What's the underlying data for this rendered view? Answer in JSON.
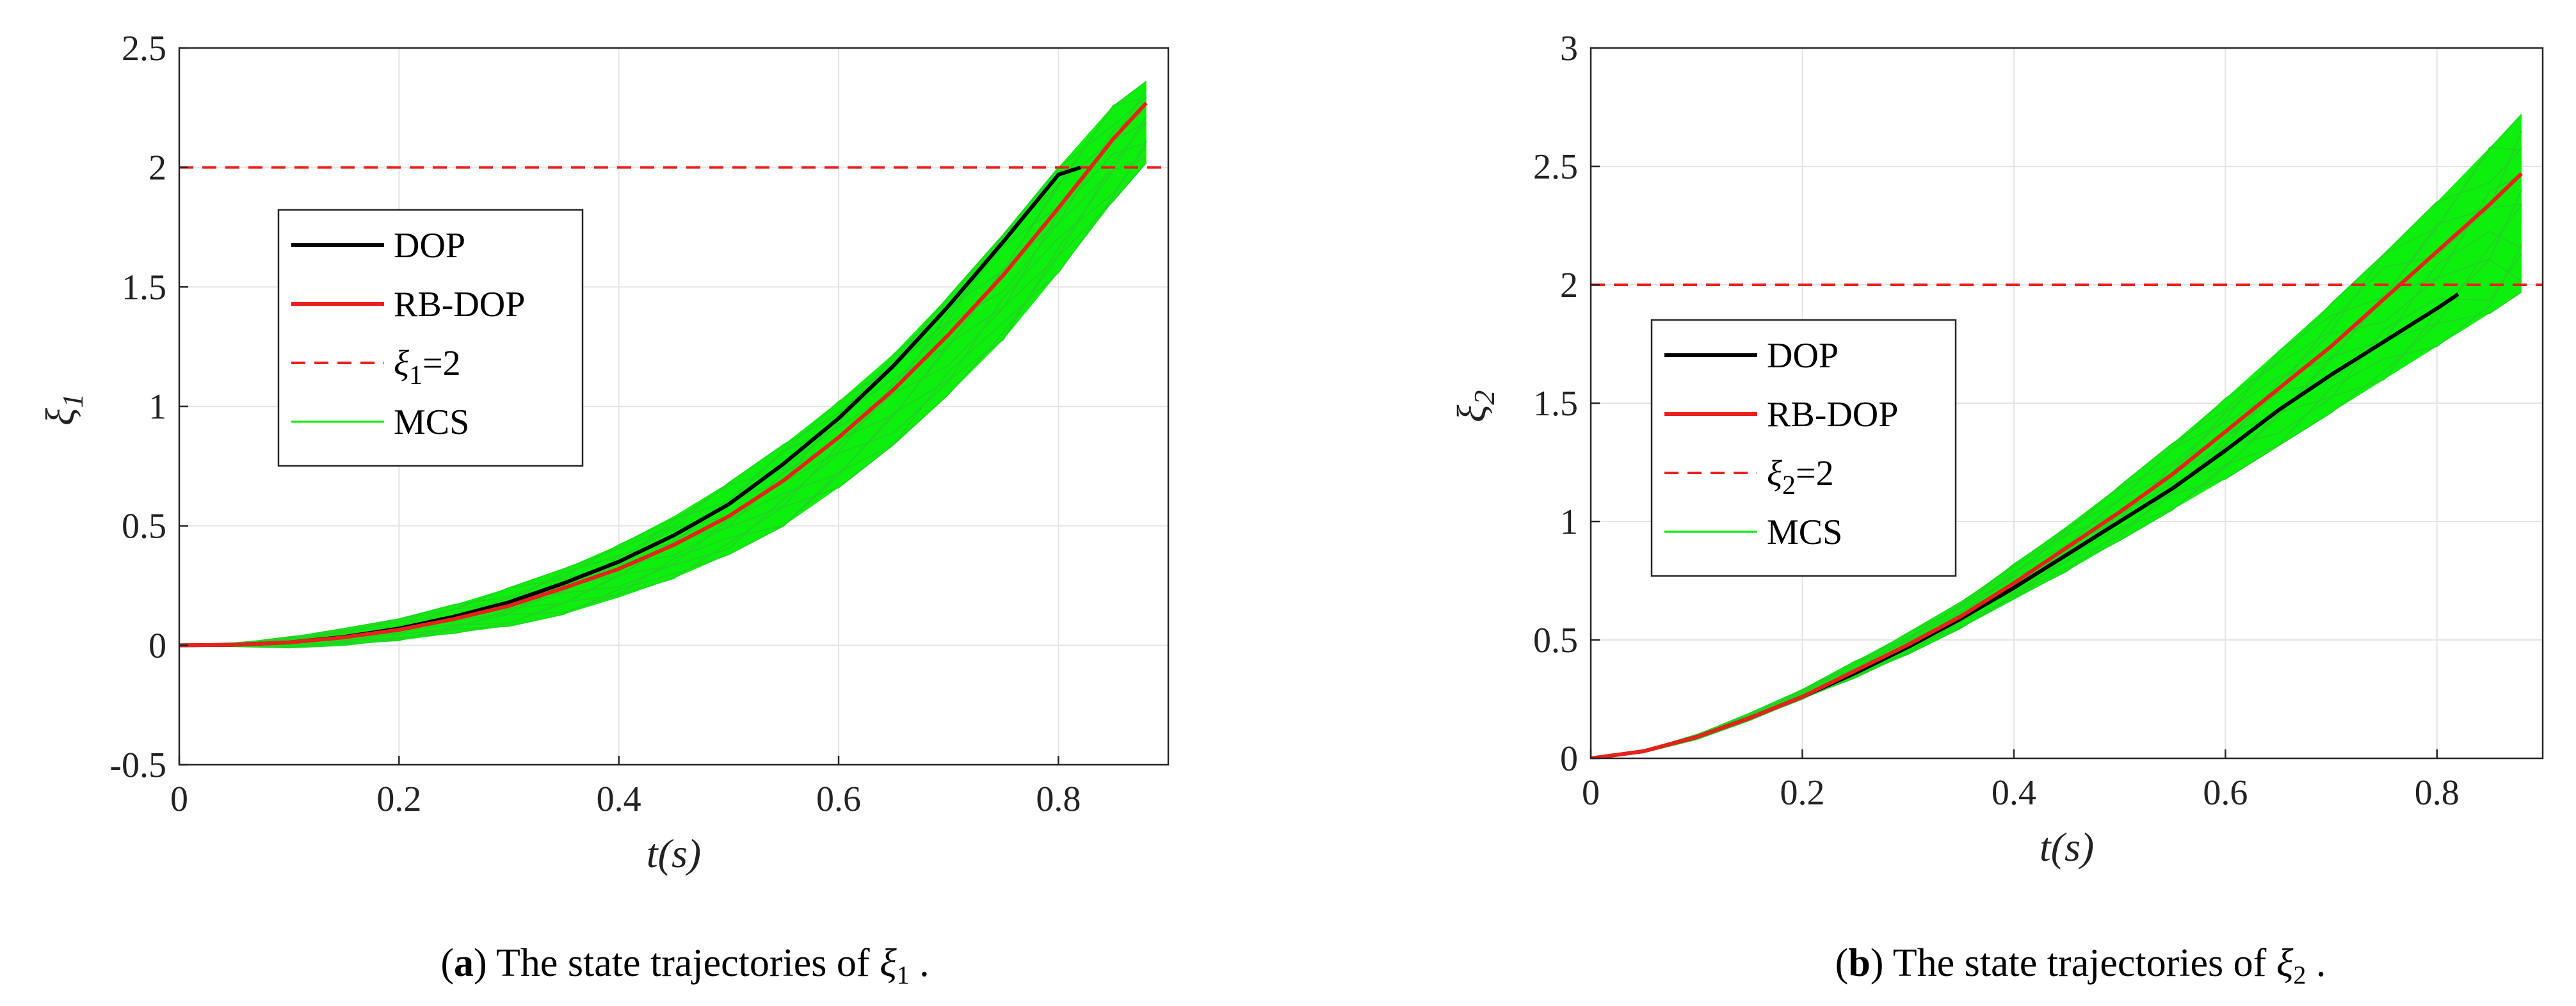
{
  "chart_data": [
    {
      "type": "line",
      "panel_letter": "a",
      "caption_text": "The state trajectories of",
      "caption_symbol": "ξ",
      "caption_subscript": "1",
      "caption_end": ".",
      "xlabel": "t(s)",
      "ylabel_symbol": "ξ",
      "ylabel_subscript": "1",
      "xlim": [
        0,
        0.9
      ],
      "ylim": [
        -0.5,
        2.5
      ],
      "xticks": [
        0,
        0.2,
        0.4,
        0.6,
        0.8
      ],
      "xtick_labels": [
        "0",
        "0.2",
        "0.4",
        "0.6",
        "0.8"
      ],
      "yticks": [
        -0.5,
        0,
        0.5,
        1,
        1.5,
        2,
        2.5
      ],
      "ytick_labels": [
        "-0.5",
        "0",
        "0.5",
        "1",
        "1.5",
        "2",
        "2.5"
      ],
      "grid": true,
      "legend_position": "center-left",
      "threshold": 2,
      "series": [
        {
          "name": "DOP",
          "color": "#000000",
          "style": "solid",
          "x": [
            0,
            0.05,
            0.1,
            0.15,
            0.2,
            0.25,
            0.3,
            0.35,
            0.4,
            0.45,
            0.5,
            0.55,
            0.6,
            0.65,
            0.7,
            0.75,
            0.8,
            0.82
          ],
          "y": [
            0,
            0.002,
            0.012,
            0.035,
            0.07,
            0.12,
            0.18,
            0.26,
            0.35,
            0.46,
            0.59,
            0.76,
            0.95,
            1.17,
            1.42,
            1.69,
            1.97,
            2.0
          ]
        },
        {
          "name": "RB-DOP",
          "color": "#e8211d",
          "style": "solid",
          "x": [
            0,
            0.05,
            0.1,
            0.15,
            0.2,
            0.25,
            0.3,
            0.35,
            0.4,
            0.45,
            0.5,
            0.55,
            0.6,
            0.65,
            0.7,
            0.75,
            0.8,
            0.85,
            0.88
          ],
          "y": [
            0,
            0.002,
            0.012,
            0.033,
            0.065,
            0.11,
            0.165,
            0.24,
            0.32,
            0.42,
            0.54,
            0.69,
            0.87,
            1.07,
            1.3,
            1.55,
            1.83,
            2.12,
            2.27
          ]
        },
        {
          "name": "ξ1=2",
          "legend_symbol": "ξ",
          "legend_subscript": "1",
          "legend_rest": "=2",
          "color": "#e8211d",
          "style": "dashed",
          "x": [
            0,
            0.9
          ],
          "y": [
            2,
            2
          ]
        },
        {
          "name": "MCS",
          "color": "#00ee00",
          "style": "band",
          "x": [
            0,
            0.05,
            0.1,
            0.15,
            0.2,
            0.25,
            0.3,
            0.35,
            0.4,
            0.45,
            0.5,
            0.55,
            0.6,
            0.65,
            0.7,
            0.75,
            0.8,
            0.85,
            0.88
          ],
          "y_low": [
            0,
            -0.005,
            -0.01,
            0.0,
            0.02,
            0.05,
            0.08,
            0.13,
            0.2,
            0.28,
            0.38,
            0.5,
            0.66,
            0.84,
            1.05,
            1.28,
            1.56,
            1.86,
            2.02
          ],
          "y_high": [
            0,
            0.01,
            0.035,
            0.07,
            0.11,
            0.17,
            0.24,
            0.32,
            0.42,
            0.54,
            0.68,
            0.84,
            1.02,
            1.22,
            1.46,
            1.72,
            2.0,
            2.26,
            2.36
          ]
        }
      ]
    },
    {
      "type": "line",
      "panel_letter": "b",
      "caption_text": "The state trajectories of",
      "caption_symbol": "ξ",
      "caption_subscript": "2",
      "caption_end": ".",
      "xlabel": "t(s)",
      "ylabel_symbol": "ξ",
      "ylabel_subscript": "2",
      "xlim": [
        0,
        0.9
      ],
      "ylim": [
        0,
        3
      ],
      "xticks": [
        0,
        0.2,
        0.4,
        0.6,
        0.8
      ],
      "xtick_labels": [
        "0",
        "0.2",
        "0.4",
        "0.6",
        "0.8"
      ],
      "yticks": [
        0,
        0.5,
        1,
        1.5,
        2,
        2.5,
        3
      ],
      "ytick_labels": [
        "0",
        "0.5",
        "1",
        "1.5",
        "2",
        "2.5",
        "3"
      ],
      "grid": true,
      "legend_position": "center-left",
      "threshold": 2,
      "series": [
        {
          "name": "DOP",
          "color": "#000000",
          "style": "solid",
          "x": [
            0,
            0.05,
            0.1,
            0.15,
            0.2,
            0.25,
            0.3,
            0.35,
            0.4,
            0.45,
            0.5,
            0.55,
            0.6,
            0.65,
            0.7,
            0.75,
            0.8,
            0.82
          ],
          "y": [
            0,
            0.03,
            0.09,
            0.17,
            0.26,
            0.36,
            0.47,
            0.59,
            0.72,
            0.86,
            1.0,
            1.14,
            1.3,
            1.47,
            1.62,
            1.76,
            1.9,
            1.96
          ]
        },
        {
          "name": "RB-DOP",
          "color": "#e8211d",
          "style": "solid",
          "x": [
            0,
            0.05,
            0.1,
            0.15,
            0.2,
            0.25,
            0.3,
            0.35,
            0.4,
            0.45,
            0.5,
            0.55,
            0.6,
            0.65,
            0.7,
            0.75,
            0.8,
            0.85,
            0.88
          ],
          "y": [
            0,
            0.03,
            0.09,
            0.17,
            0.26,
            0.37,
            0.48,
            0.6,
            0.74,
            0.89,
            1.04,
            1.2,
            1.38,
            1.56,
            1.74,
            1.94,
            2.14,
            2.34,
            2.47
          ]
        },
        {
          "name": "ξ2=2",
          "legend_symbol": "ξ",
          "legend_subscript": "2",
          "legend_rest": "=2",
          "color": "#e8211d",
          "style": "dashed",
          "x": [
            0,
            0.9
          ],
          "y": [
            2,
            2
          ]
        },
        {
          "name": "MCS",
          "color": "#00ee00",
          "style": "band",
          "x": [
            0,
            0.05,
            0.1,
            0.15,
            0.2,
            0.25,
            0.3,
            0.35,
            0.4,
            0.45,
            0.5,
            0.55,
            0.6,
            0.65,
            0.7,
            0.75,
            0.8,
            0.85,
            0.88
          ],
          "y_low": [
            0,
            0.025,
            0.08,
            0.16,
            0.25,
            0.34,
            0.44,
            0.55,
            0.67,
            0.79,
            0.92,
            1.05,
            1.18,
            1.32,
            1.46,
            1.6,
            1.74,
            1.88,
            1.97
          ],
          "y_high": [
            0,
            0.035,
            0.1,
            0.19,
            0.29,
            0.41,
            0.53,
            0.66,
            0.82,
            0.98,
            1.15,
            1.33,
            1.52,
            1.72,
            1.92,
            2.13,
            2.35,
            2.58,
            2.72
          ]
        }
      ]
    }
  ]
}
